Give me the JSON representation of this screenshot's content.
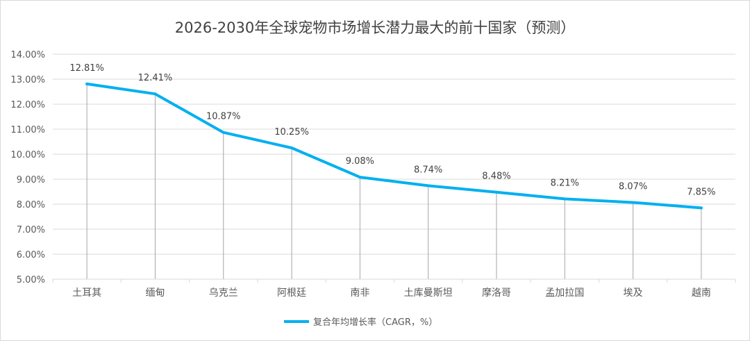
{
  "chart_data": {
    "type": "line",
    "title": "2026-2030年全球宠物市场增长潜力最大的前十国家（预测）",
    "xlabel": "",
    "ylabel": "",
    "categories": [
      "土耳其",
      "缅甸",
      "乌克兰",
      "阿根廷",
      "南非",
      "土库曼斯坦",
      "摩洛哥",
      "孟加拉国",
      "埃及",
      "越南"
    ],
    "series": [
      {
        "name": "复合年均增长率（CAGR，%）",
        "values": [
          12.81,
          12.41,
          10.87,
          10.25,
          9.08,
          8.74,
          8.48,
          8.21,
          8.07,
          7.85
        ],
        "data_labels": [
          "12.81%",
          "12.41%",
          "10.87%",
          "10.25%",
          "9.08%",
          "8.74%",
          "8.48%",
          "8.21%",
          "8.07%",
          "7.85%"
        ],
        "color": "#00b0f0"
      }
    ],
    "ylim": [
      5,
      14
    ],
    "ytick_step": 1,
    "ytick_labels": [
      "5.00%",
      "6.00%",
      "7.00%",
      "8.00%",
      "9.00%",
      "10.00%",
      "11.00%",
      "12.00%",
      "13.00%",
      "14.00%"
    ],
    "grid": true,
    "drop_lines": true,
    "legend_position": "bottom",
    "colors": {
      "line": "#00b0f0",
      "grid": "#d9d9d9",
      "drop_line": "#a6a6a6",
      "text": "#595959"
    }
  }
}
